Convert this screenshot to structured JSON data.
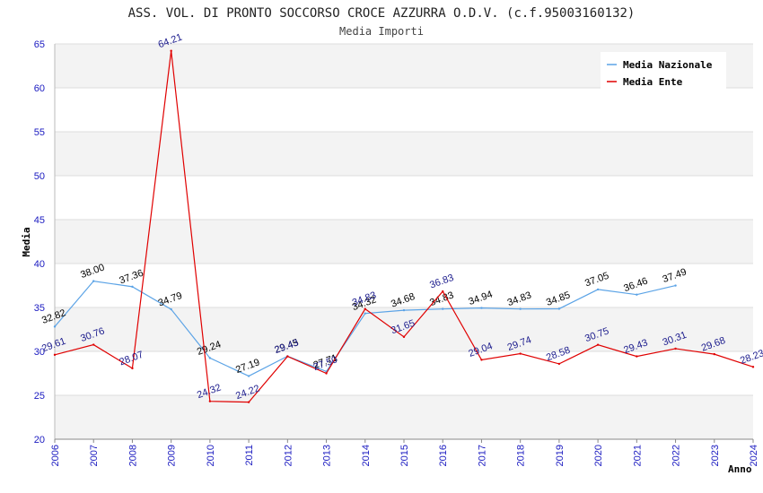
{
  "chart_data": {
    "type": "line",
    "title": "ASS. VOL. DI PRONTO SOCCORSO CROCE AZZURRA O.D.V. (c.f.95003160132)",
    "subtitle": "Media Importi",
    "xlabel": "Anno",
    "ylabel": "Media",
    "ylim": [
      20,
      65
    ],
    "yticks": [
      20,
      25,
      30,
      35,
      40,
      45,
      50,
      55,
      60,
      65
    ],
    "categories": [
      "2006",
      "2007",
      "2008",
      "2009",
      "2010",
      "2011",
      "2012",
      "2013",
      "2014",
      "2015",
      "2016",
      "2017",
      "2018",
      "2019",
      "2020",
      "2021",
      "2022",
      "2023",
      "2024"
    ],
    "grid": "horizontal bands",
    "legend_position": "top-right",
    "series": [
      {
        "name": "Media Nazionale",
        "color": "#5ba3e6",
        "label_color": "#000000",
        "values": [
          32.82,
          38.0,
          37.36,
          34.79,
          29.24,
          27.19,
          29.45,
          27.71,
          34.32,
          34.68,
          34.83,
          34.94,
          34.83,
          34.85,
          37.05,
          36.46,
          37.49,
          null,
          null
        ],
        "labels": [
          "32.82",
          "38.00",
          "37.36",
          "34.79",
          "29.24",
          "27.19",
          "29.45",
          "27.71",
          "34.32",
          "34.68",
          "34.83",
          "34.94",
          "34.83",
          "34.85",
          "37.05",
          "36.46",
          "37.49",
          null,
          null
        ]
      },
      {
        "name": "Media Ente",
        "color": "#e00000",
        "label_color": "#1a1a8c",
        "values": [
          29.61,
          30.76,
          28.07,
          64.21,
          24.32,
          24.22,
          29.43,
          27.5,
          34.83,
          31.65,
          36.83,
          29.04,
          29.74,
          28.58,
          30.75,
          29.43,
          30.31,
          29.68,
          28.23
        ],
        "labels": [
          "29.61",
          "30.76",
          "28.07",
          "64.21",
          "24.32",
          "24.22",
          "29.43",
          "27.50",
          "34.83",
          "31.65",
          "36.83",
          "29.04",
          "29.74",
          "28.58",
          "30.75",
          "29.43",
          "30.31",
          "29.68",
          "28.23"
        ]
      }
    ]
  }
}
